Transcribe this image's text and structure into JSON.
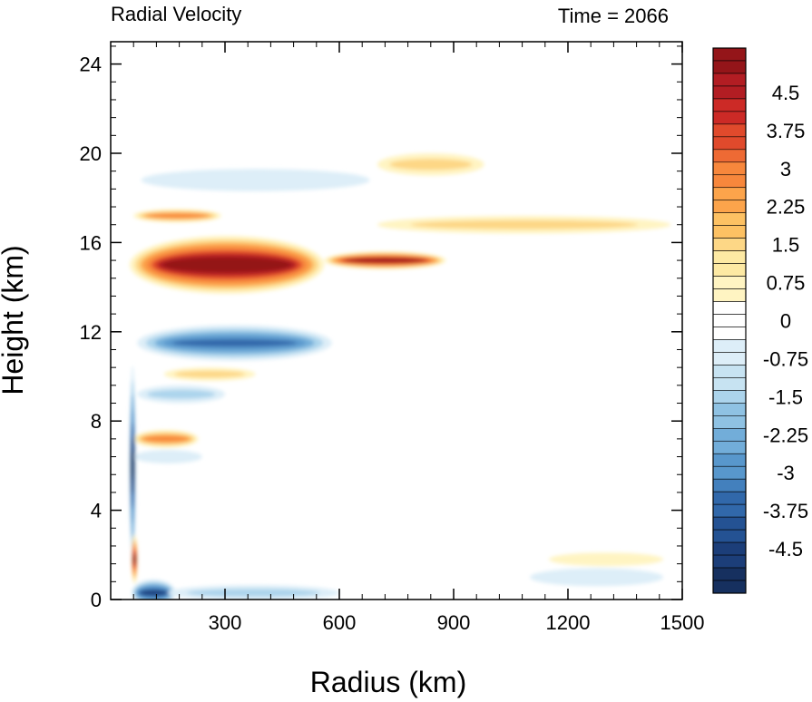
{
  "chart_data": {
    "type": "heatmap",
    "title_left": "Radial Velocity",
    "title_right": "Time = 2066",
    "xlabel": "Radius (km)",
    "ylabel": "Height (km)",
    "xlim": [
      0,
      1500
    ],
    "ylim": [
      0,
      25
    ],
    "xticks": [
      300,
      600,
      900,
      1200,
      1500
    ],
    "yticks": [
      0,
      4,
      8,
      12,
      16,
      20,
      24
    ],
    "colorbar": {
      "min": -5.25,
      "max": 5.25,
      "step": 0.25,
      "labels": [
        "4.5",
        "3.75",
        "3",
        "2.25",
        "1.5",
        "0.75",
        "0",
        "-0.75",
        "-1.5",
        "-2.25",
        "-3",
        "-3.75",
        "-4.5"
      ],
      "label_values": [
        4.5,
        3.75,
        3,
        2.25,
        1.5,
        0.75,
        0,
        -0.75,
        -1.5,
        -2.25,
        -3,
        -3.75,
        -4.5
      ],
      "colors_warm": [
        "#fffde6",
        "#fff4c2",
        "#fde9a3",
        "#fdd786",
        "#fdc163",
        "#fca44b",
        "#f7873c",
        "#ee6a34",
        "#e04a2c",
        "#cc2a26",
        "#b21d23",
        "#941519"
      ],
      "colors_cool": [
        "#f3f9fd",
        "#ddeef8",
        "#c7e3f2",
        "#acd4ec",
        "#8fc2e3",
        "#72add9",
        "#5897cc",
        "#4380bd",
        "#3168aa",
        "#245293",
        "#1c3e79",
        "#16305f"
      ]
    },
    "features": [
      {
        "value": 6.0,
        "r": [
          50,
          560
        ],
        "z_center": 15.0,
        "half_thickness": 1.3
      },
      {
        "value": 5.5,
        "r": [
          560,
          880
        ],
        "z_center": 15.2,
        "half_thickness": 0.4
      },
      {
        "value": -3.8,
        "r": [
          70,
          580
        ],
        "z_center": 11.5,
        "half_thickness": 0.8
      },
      {
        "value": 2.8,
        "r": [
          60,
          290
        ],
        "z_center": 17.2,
        "half_thickness": 0.3
      },
      {
        "value": 1.2,
        "r": [
          700,
          1470
        ],
        "z_center": 16.8,
        "half_thickness": 0.4
      },
      {
        "value": 1.5,
        "r": [
          700,
          980
        ],
        "z_center": 19.5,
        "half_thickness": 0.5
      },
      {
        "value": -1.0,
        "r": [
          80,
          680
        ],
        "z_center": 18.8,
        "half_thickness": 0.5
      },
      {
        "value": 1.5,
        "r": [
          140,
          380
        ],
        "z_center": 10.1,
        "half_thickness": 0.3
      },
      {
        "value": -1.3,
        "r": [
          70,
          300
        ],
        "z_center": 9.2,
        "half_thickness": 0.4
      },
      {
        "value": 2.8,
        "r": [
          60,
          230
        ],
        "z_center": 7.2,
        "half_thickness": 0.4
      },
      {
        "value": -1.0,
        "r": [
          60,
          240
        ],
        "z_center": 6.4,
        "half_thickness": 0.3
      },
      {
        "value": -5.0,
        "r": [
          50,
          65
        ],
        "z_center": 6.0,
        "half_thickness": 4.5
      },
      {
        "value": 5.0,
        "r": [
          55,
          70
        ],
        "z_center": 1.8,
        "half_thickness": 1.1
      },
      {
        "value": -4.5,
        "r": [
          55,
          170
        ],
        "z_center": 0.3,
        "half_thickness": 0.6
      },
      {
        "value": -1.5,
        "r": [
          150,
          600
        ],
        "z_center": 0.3,
        "half_thickness": 0.35
      },
      {
        "value": -0.6,
        "r": [
          1100,
          1450
        ],
        "z_center": 1.0,
        "half_thickness": 0.4
      },
      {
        "value": 0.6,
        "r": [
          1150,
          1450
        ],
        "z_center": 1.8,
        "half_thickness": 0.3
      }
    ]
  }
}
